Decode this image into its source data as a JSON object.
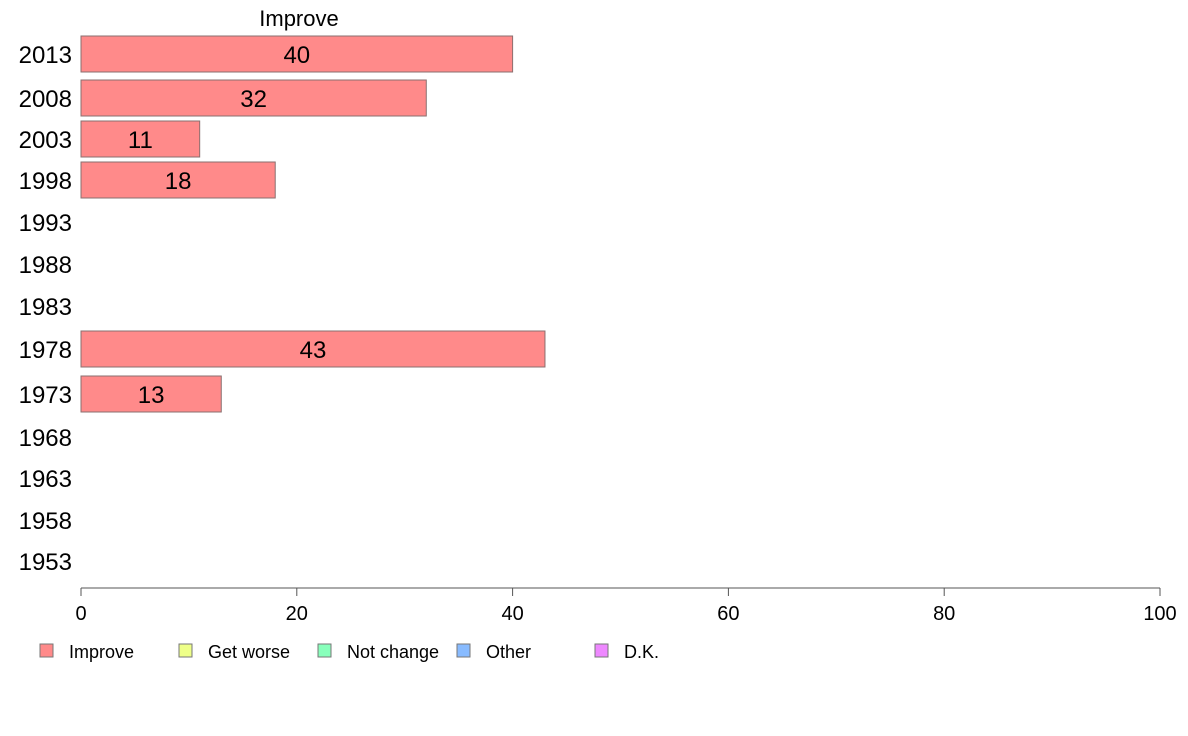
{
  "chart_data": {
    "type": "bar",
    "orientation": "horizontal",
    "panel_title": "Improve",
    "categories": [
      "2013",
      "2008",
      "2003",
      "1998",
      "1993",
      "1988",
      "1983",
      "1978",
      "1973",
      "1968",
      "1963",
      "1958",
      "1953"
    ],
    "series": [
      {
        "name": "Improve",
        "color": "#ff8a8a",
        "values": [
          40,
          32,
          11,
          18,
          null,
          null,
          null,
          43,
          13,
          null,
          null,
          null,
          null
        ]
      }
    ],
    "xlim": [
      0,
      100
    ],
    "xticks": [
      "0",
      "20",
      "40",
      "60",
      "80",
      "100"
    ],
    "legend": {
      "placement": "bottom",
      "entries": [
        {
          "label": "Improve",
          "color": "#ff8a8a"
        },
        {
          "label": "Get worse",
          "color": "#eeff88"
        },
        {
          "label": "Not change",
          "color": "#88ffbb"
        },
        {
          "label": "Other",
          "color": "#88bbff"
        },
        {
          "label": "D.K.",
          "color": "#ee88ff"
        }
      ]
    },
    "grid": false
  }
}
